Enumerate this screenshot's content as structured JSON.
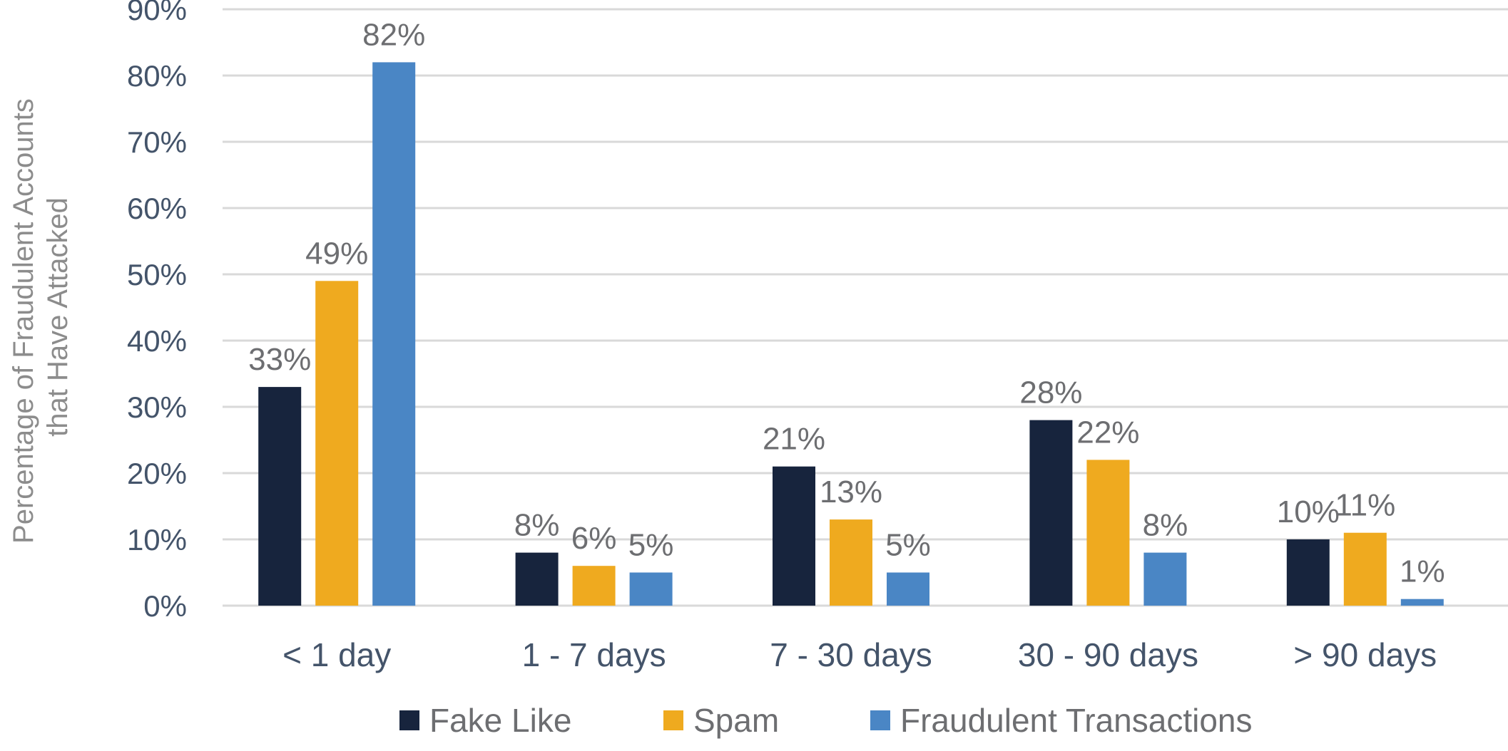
{
  "chart_data": {
    "type": "bar",
    "title": "",
    "xlabel": "",
    "ylabel_lines": [
      "Percentage of Fraudulent Accounts",
      "that Have Attacked"
    ],
    "ylim": [
      0,
      90
    ],
    "ytick_step": 10,
    "ytick_suffix": "%",
    "grid": true,
    "legend_position": "bottom",
    "categories": [
      "< 1 day",
      "1 - 7 days",
      "7 - 30 days",
      "30 - 90 days",
      "> 90 days"
    ],
    "series": [
      {
        "name": "Fake Like",
        "color": "#17243d",
        "values": [
          33,
          8,
          21,
          28,
          10
        ],
        "labels": [
          "33%",
          "8%",
          "21%",
          "28%",
          "10%"
        ]
      },
      {
        "name": "Spam",
        "color": "#efaa1f",
        "values": [
          49,
          6,
          13,
          22,
          11
        ],
        "labels": [
          "49%",
          "6%",
          "13%",
          "22%",
          "11%"
        ]
      },
      {
        "name": "Fraudulent Transactions",
        "color": "#4a86c5",
        "values": [
          82,
          5,
          5,
          8,
          1
        ],
        "labels": [
          "82%",
          "5%",
          "5%",
          "8%",
          "1%"
        ]
      }
    ]
  }
}
